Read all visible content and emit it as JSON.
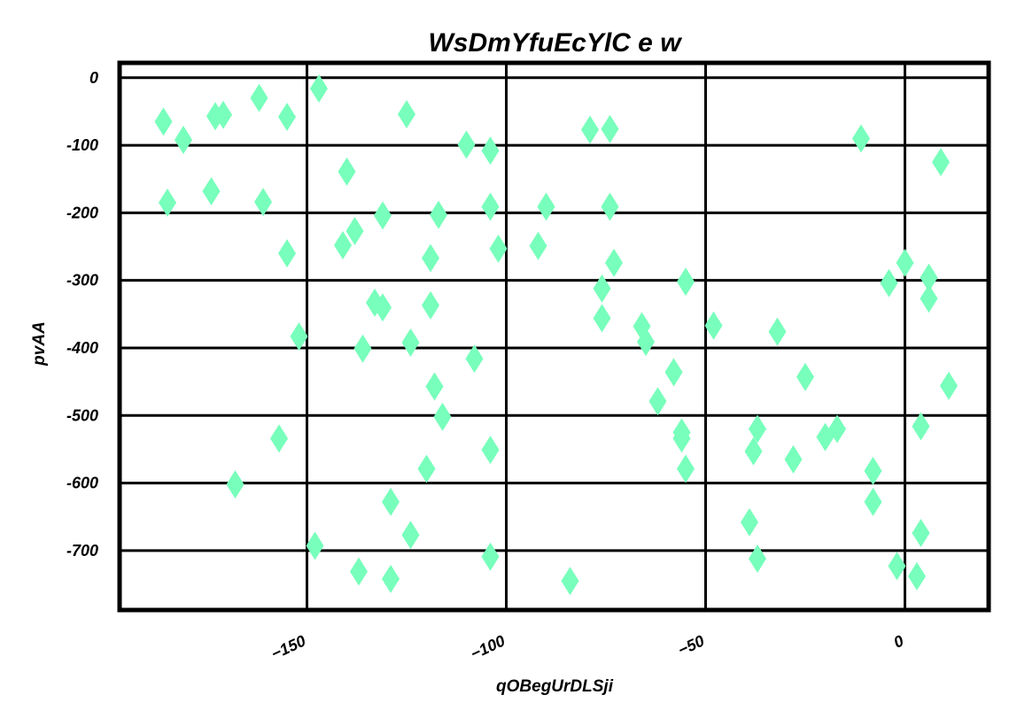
{
  "chart_data": {
    "type": "scatter",
    "title": "WsDmYfuEcYlC e w",
    "xlabel": "qOBegUrDLSji",
    "ylabel": "pvAA",
    "xlim": [
      -197,
      21
    ],
    "ylim": [
      -788,
      22
    ],
    "xticks": [
      -150,
      -100,
      -50,
      0
    ],
    "xtick_labels": [
      "−150",
      "−100",
      "−50",
      "0"
    ],
    "yticks": [
      0,
      -100,
      -200,
      -300,
      -400,
      -500,
      -600,
      -700
    ],
    "ytick_labels": [
      "0",
      "-100",
      "-200",
      "-300",
      "-400",
      "-500",
      "-600",
      "-700"
    ],
    "grid": true,
    "marker": "diamond",
    "marker_color": "#77ffbb",
    "series": [
      {
        "points": [
          [
            -186,
            -65
          ],
          [
            -185,
            -185
          ],
          [
            -181,
            -92
          ],
          [
            -174,
            -168
          ],
          [
            -173,
            -57
          ],
          [
            -171,
            -55
          ],
          [
            -168,
            -602
          ],
          [
            -162,
            -30
          ],
          [
            -161,
            -184
          ],
          [
            -157,
            -534
          ],
          [
            -155,
            -58
          ],
          [
            -155,
            -260
          ],
          [
            -152,
            -383
          ],
          [
            -148,
            -693
          ],
          [
            -147,
            -16
          ],
          [
            -141,
            -248
          ],
          [
            -140,
            -139
          ],
          [
            -138,
            -227
          ],
          [
            -137,
            -731
          ],
          [
            -136,
            -401
          ],
          [
            -133,
            -333
          ],
          [
            -131,
            -204
          ],
          [
            -131,
            -340
          ],
          [
            -129,
            -628
          ],
          [
            -129,
            -742
          ],
          [
            -125,
            -54
          ],
          [
            -124,
            -392
          ],
          [
            -124,
            -677
          ],
          [
            -120,
            -579
          ],
          [
            -119,
            -337
          ],
          [
            -119,
            -267
          ],
          [
            -118,
            -457
          ],
          [
            -117,
            -203
          ],
          [
            -116,
            -502
          ],
          [
            -110,
            -99
          ],
          [
            -108,
            -416
          ],
          [
            -104,
            -108
          ],
          [
            -104,
            -191
          ],
          [
            -104,
            -551
          ],
          [
            -104,
            -709
          ],
          [
            -102,
            -253
          ],
          [
            -92,
            -249
          ],
          [
            -90,
            -191
          ],
          [
            -84,
            -745
          ],
          [
            -79,
            -77
          ],
          [
            -76,
            -312
          ],
          [
            -76,
            -356
          ],
          [
            -74,
            -76
          ],
          [
            -74,
            -191
          ],
          [
            -73,
            -274
          ],
          [
            -66,
            -368
          ],
          [
            -65,
            -391
          ],
          [
            -62,
            -479
          ],
          [
            -58,
            -436
          ],
          [
            -56,
            -534
          ],
          [
            -56,
            -525
          ],
          [
            -55,
            -579
          ],
          [
            -55,
            -302
          ],
          [
            -48,
            -367
          ],
          [
            -39,
            -658
          ],
          [
            -38,
            -553
          ],
          [
            -37,
            -712
          ],
          [
            -37,
            -520
          ],
          [
            -32,
            -376
          ],
          [
            -28,
            -565
          ],
          [
            -25,
            -443
          ],
          [
            -20,
            -532
          ],
          [
            -17,
            -520
          ],
          [
            -11,
            -90
          ],
          [
            -8,
            -582
          ],
          [
            -8,
            -628
          ],
          [
            -4,
            -304
          ],
          [
            -2,
            -723
          ],
          [
            0,
            -274
          ],
          [
            3,
            -738
          ],
          [
            4,
            -516
          ],
          [
            4,
            -674
          ],
          [
            6,
            -296
          ],
          [
            6,
            -327
          ],
          [
            9,
            -125
          ],
          [
            11,
            -456
          ]
        ]
      }
    ]
  }
}
